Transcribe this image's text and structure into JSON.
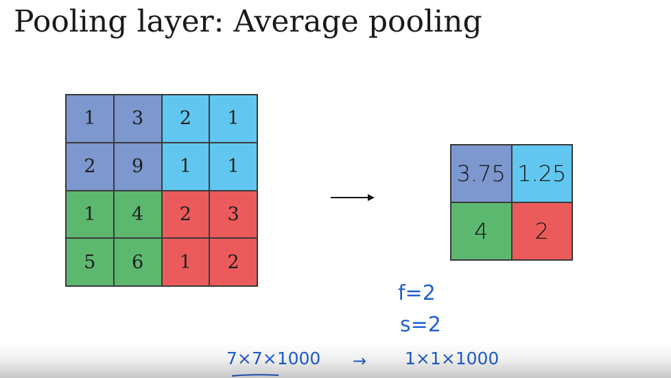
{
  "slide": {
    "title": "Pooling layer: Average pooling"
  },
  "colors": {
    "blue": "#7d97cf",
    "cyan": "#62c7f0",
    "green": "#5db86f",
    "red": "#ec5b5b",
    "ink": "#1f5fd1"
  },
  "input_matrix": {
    "rows": [
      [
        "1",
        "3",
        "2",
        "1"
      ],
      [
        "2",
        "9",
        "1",
        "1"
      ],
      [
        "1",
        "4",
        "2",
        "3"
      ],
      [
        "5",
        "6",
        "1",
        "2"
      ]
    ],
    "quadrant_colors": [
      [
        "blue",
        "blue",
        "cyan",
        "cyan"
      ],
      [
        "blue",
        "blue",
        "cyan",
        "cyan"
      ],
      [
        "green",
        "green",
        "red",
        "red"
      ],
      [
        "green",
        "green",
        "red",
        "red"
      ]
    ]
  },
  "output_matrix": {
    "rows": [
      [
        "3.75",
        "1.25"
      ],
      [
        "4",
        "2"
      ]
    ],
    "quadrant_colors": [
      [
        "blue",
        "cyan"
      ],
      [
        "green",
        "red"
      ]
    ]
  },
  "annotations": {
    "f": "f=2",
    "s": "s=2",
    "input_shape": "7×7×1000",
    "arrow": "→",
    "output_shape": "1×1×1000"
  }
}
